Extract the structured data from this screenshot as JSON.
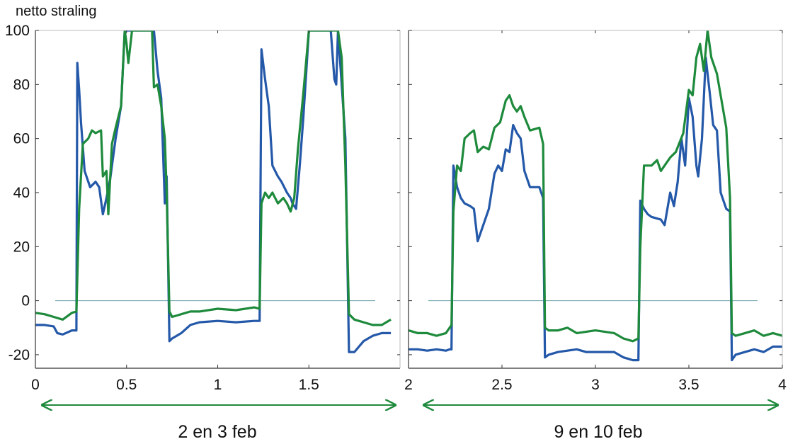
{
  "chart_data": [
    {
      "type": "line",
      "ylabel": "netto straling",
      "caption": "2 en 3 feb",
      "xlim": [
        0,
        2
      ],
      "ylim": [
        -25,
        100
      ],
      "x_ticks": [
        "0",
        "0.5",
        "1",
        "1.5"
      ],
      "y_ticks": [
        "100",
        "80",
        "60",
        "40",
        "20",
        "0",
        "-20"
      ],
      "zero_line": true,
      "series": [
        {
          "color": "#2458a8",
          "points": [
            [
              0,
              -9
            ],
            [
              0.05,
              -9
            ],
            [
              0.1,
              -9.5
            ],
            [
              0.12,
              -12
            ],
            [
              0.15,
              -12.5
            ],
            [
              0.2,
              -11
            ],
            [
              0.225,
              -11
            ],
            [
              0.23,
              88
            ],
            [
              0.24,
              78
            ],
            [
              0.25,
              66
            ],
            [
              0.27,
              48
            ],
            [
              0.3,
              42
            ],
            [
              0.33,
              44
            ],
            [
              0.35,
              42
            ],
            [
              0.37,
              32
            ],
            [
              0.39,
              38
            ],
            [
              0.41,
              45
            ],
            [
              0.44,
              60
            ],
            [
              0.47,
              72
            ],
            [
              0.49,
              100
            ],
            [
              0.51,
              100
            ],
            [
              0.54,
              100
            ],
            [
              0.58,
              100
            ],
            [
              0.6,
              100
            ],
            [
              0.62,
              100
            ],
            [
              0.64,
              100
            ],
            [
              0.65,
              100
            ],
            [
              0.67,
              85
            ],
            [
              0.69,
              75
            ],
            [
              0.71,
              36
            ],
            [
              0.72,
              46
            ],
            [
              0.735,
              -15
            ],
            [
              0.75,
              -14
            ],
            [
              0.8,
              -12
            ],
            [
              0.85,
              -9
            ],
            [
              0.9,
              -8
            ],
            [
              1.0,
              -7.5
            ],
            [
              1.1,
              -8
            ],
            [
              1.2,
              -7.5
            ],
            [
              1.23,
              -7.5
            ],
            [
              1.24,
              93
            ],
            [
              1.26,
              82
            ],
            [
              1.28,
              72
            ],
            [
              1.3,
              50
            ],
            [
              1.33,
              46
            ],
            [
              1.35,
              44
            ],
            [
              1.38,
              40
            ],
            [
              1.4,
              38
            ],
            [
              1.41,
              36
            ],
            [
              1.43,
              34
            ],
            [
              1.45,
              50
            ],
            [
              1.47,
              68
            ],
            [
              1.5,
              100
            ],
            [
              1.55,
              100
            ],
            [
              1.6,
              100
            ],
            [
              1.62,
              100
            ],
            [
              1.64,
              82
            ],
            [
              1.65,
              80
            ],
            [
              1.66,
              100
            ],
            [
              1.68,
              80
            ],
            [
              1.7,
              60
            ],
            [
              1.72,
              -19
            ],
            [
              1.75,
              -19
            ],
            [
              1.8,
              -15
            ],
            [
              1.85,
              -13
            ],
            [
              1.9,
              -12
            ],
            [
              1.95,
              -12
            ]
          ]
        },
        {
          "color": "#1e8a3c",
          "points": [
            [
              0,
              -4.5
            ],
            [
              0.05,
              -5
            ],
            [
              0.1,
              -6
            ],
            [
              0.15,
              -7
            ],
            [
              0.2,
              -4.5
            ],
            [
              0.225,
              -4
            ],
            [
              0.24,
              34
            ],
            [
              0.26,
              58
            ],
            [
              0.29,
              60
            ],
            [
              0.31,
              63
            ],
            [
              0.33,
              62
            ],
            [
              0.36,
              63
            ],
            [
              0.37,
              46
            ],
            [
              0.39,
              48
            ],
            [
              0.4,
              32
            ],
            [
              0.42,
              58
            ],
            [
              0.44,
              64
            ],
            [
              0.47,
              72
            ],
            [
              0.49,
              100
            ],
            [
              0.5,
              95
            ],
            [
              0.51,
              88
            ],
            [
              0.53,
              100
            ],
            [
              0.55,
              100
            ],
            [
              0.58,
              100
            ],
            [
              0.6,
              100
            ],
            [
              0.62,
              100
            ],
            [
              0.64,
              100
            ],
            [
              0.65,
              79
            ],
            [
              0.67,
              80
            ],
            [
              0.69,
              72
            ],
            [
              0.71,
              60
            ],
            [
              0.72,
              40
            ],
            [
              0.735,
              -4
            ],
            [
              0.75,
              -6
            ],
            [
              0.8,
              -5
            ],
            [
              0.85,
              -4
            ],
            [
              0.9,
              -4
            ],
            [
              1.0,
              -3
            ],
            [
              1.1,
              -3.5
            ],
            [
              1.2,
              -2.5
            ],
            [
              1.23,
              -3
            ],
            [
              1.24,
              36
            ],
            [
              1.26,
              40
            ],
            [
              1.28,
              38
            ],
            [
              1.3,
              40
            ],
            [
              1.33,
              36
            ],
            [
              1.36,
              38
            ],
            [
              1.38,
              36
            ],
            [
              1.4,
              33
            ],
            [
              1.42,
              38
            ],
            [
              1.44,
              56
            ],
            [
              1.47,
              77
            ],
            [
              1.5,
              100
            ],
            [
              1.52,
              100
            ],
            [
              1.55,
              100
            ],
            [
              1.6,
              100
            ],
            [
              1.62,
              100
            ],
            [
              1.65,
              100
            ],
            [
              1.66,
              100
            ],
            [
              1.68,
              90
            ],
            [
              1.7,
              50
            ],
            [
              1.72,
              -5
            ],
            [
              1.75,
              -7
            ],
            [
              1.8,
              -8
            ],
            [
              1.85,
              -9
            ],
            [
              1.9,
              -9
            ],
            [
              1.95,
              -7
            ]
          ]
        }
      ]
    },
    {
      "type": "line",
      "caption": "9 en 10 feb",
      "xlim": [
        2,
        4
      ],
      "ylim": [
        -25,
        100
      ],
      "x_ticks": [
        "2",
        "2.5",
        "3",
        "3.5",
        "4"
      ],
      "zero_line": true,
      "series": [
        {
          "color": "#2458a8",
          "points": [
            [
              2,
              -18
            ],
            [
              2.05,
              -18
            ],
            [
              2.1,
              -18.5
            ],
            [
              2.15,
              -18
            ],
            [
              2.2,
              -18.5
            ],
            [
              2.22,
              -18
            ],
            [
              2.23,
              -18
            ],
            [
              2.24,
              50
            ],
            [
              2.26,
              42
            ],
            [
              2.28,
              38
            ],
            [
              2.3,
              36
            ],
            [
              2.33,
              35
            ],
            [
              2.35,
              34
            ],
            [
              2.37,
              22
            ],
            [
              2.4,
              28
            ],
            [
              2.43,
              34
            ],
            [
              2.46,
              47
            ],
            [
              2.48,
              50
            ],
            [
              2.5,
              48
            ],
            [
              2.52,
              56
            ],
            [
              2.54,
              55
            ],
            [
              2.56,
              65
            ],
            [
              2.58,
              62
            ],
            [
              2.6,
              60
            ],
            [
              2.62,
              48
            ],
            [
              2.65,
              42
            ],
            [
              2.7,
              42
            ],
            [
              2.72,
              38
            ],
            [
              2.73,
              -21
            ],
            [
              2.75,
              -20
            ],
            [
              2.8,
              -19
            ],
            [
              2.85,
              -18.5
            ],
            [
              2.9,
              -18
            ],
            [
              2.95,
              -19
            ],
            [
              3.0,
              -19
            ],
            [
              3.1,
              -19
            ],
            [
              3.15,
              -21
            ],
            [
              3.2,
              -22
            ],
            [
              3.23,
              -22
            ],
            [
              3.24,
              37
            ],
            [
              3.26,
              34
            ],
            [
              3.28,
              32
            ],
            [
              3.3,
              31
            ],
            [
              3.35,
              30
            ],
            [
              3.37,
              28
            ],
            [
              3.4,
              40
            ],
            [
              3.42,
              35
            ],
            [
              3.44,
              44
            ],
            [
              3.46,
              60
            ],
            [
              3.48,
              50
            ],
            [
              3.5,
              75
            ],
            [
              3.52,
              68
            ],
            [
              3.54,
              50
            ],
            [
              3.55,
              46
            ],
            [
              3.57,
              60
            ],
            [
              3.59,
              90
            ],
            [
              3.61,
              78
            ],
            [
              3.63,
              65
            ],
            [
              3.65,
              63
            ],
            [
              3.67,
              40
            ],
            [
              3.7,
              34
            ],
            [
              3.72,
              33
            ],
            [
              3.73,
              -22
            ],
            [
              3.75,
              -20
            ],
            [
              3.8,
              -19
            ],
            [
              3.85,
              -18
            ],
            [
              3.9,
              -19
            ],
            [
              3.95,
              -17
            ],
            [
              4.0,
              -17
            ]
          ]
        },
        {
          "color": "#1e8a3c",
          "points": [
            [
              2,
              -11
            ],
            [
              2.05,
              -12
            ],
            [
              2.1,
              -12
            ],
            [
              2.15,
              -13
            ],
            [
              2.2,
              -12
            ],
            [
              2.22,
              -10
            ],
            [
              2.23,
              -9
            ],
            [
              2.24,
              33
            ],
            [
              2.26,
              50
            ],
            [
              2.28,
              48
            ],
            [
              2.3,
              60
            ],
            [
              2.33,
              62
            ],
            [
              2.35,
              63
            ],
            [
              2.37,
              55
            ],
            [
              2.4,
              57
            ],
            [
              2.43,
              56
            ],
            [
              2.46,
              64
            ],
            [
              2.49,
              66
            ],
            [
              2.52,
              74
            ],
            [
              2.54,
              76
            ],
            [
              2.56,
              72
            ],
            [
              2.58,
              70
            ],
            [
              2.6,
              72
            ],
            [
              2.62,
              68
            ],
            [
              2.65,
              63
            ],
            [
              2.7,
              64
            ],
            [
              2.72,
              58
            ],
            [
              2.73,
              -10
            ],
            [
              2.75,
              -11
            ],
            [
              2.8,
              -11
            ],
            [
              2.85,
              -10
            ],
            [
              2.9,
              -12
            ],
            [
              3.0,
              -11
            ],
            [
              3.1,
              -12
            ],
            [
              3.15,
              -14
            ],
            [
              3.2,
              -15
            ],
            [
              3.23,
              -14
            ],
            [
              3.24,
              20
            ],
            [
              3.26,
              50
            ],
            [
              3.28,
              50
            ],
            [
              3.3,
              50
            ],
            [
              3.33,
              52
            ],
            [
              3.35,
              48
            ],
            [
              3.4,
              53
            ],
            [
              3.43,
              55
            ],
            [
              3.47,
              62
            ],
            [
              3.5,
              78
            ],
            [
              3.52,
              76
            ],
            [
              3.54,
              90
            ],
            [
              3.56,
              95
            ],
            [
              3.58,
              85
            ],
            [
              3.6,
              100
            ],
            [
              3.62,
              90
            ],
            [
              3.65,
              84
            ],
            [
              3.68,
              72
            ],
            [
              3.7,
              64
            ],
            [
              3.72,
              38
            ],
            [
              3.73,
              -12
            ],
            [
              3.75,
              -13
            ],
            [
              3.8,
              -12
            ],
            [
              3.85,
              -11
            ],
            [
              3.9,
              -13
            ],
            [
              3.95,
              -12
            ],
            [
              4.0,
              -13
            ]
          ]
        }
      ]
    }
  ]
}
